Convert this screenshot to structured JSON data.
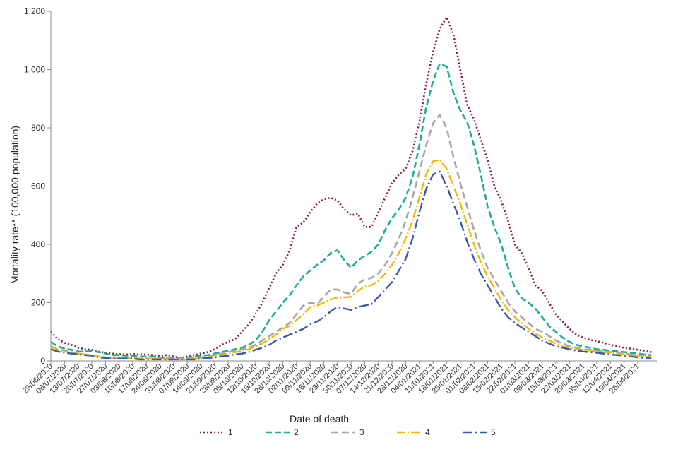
{
  "chart_data": {
    "type": "line",
    "title": "",
    "xlabel": "Date of death",
    "ylabel": "Mortality rate** (100,000 population)",
    "ylim": [
      0,
      1200
    ],
    "yticks": [
      "0",
      "200",
      "400",
      "600",
      "800",
      "1,000",
      "1,200"
    ],
    "ytick_values": [
      0,
      200,
      400,
      600,
      800,
      1000,
      1200
    ],
    "grid": false,
    "legend_position": "bottom",
    "x_tick_labels": [
      "29/06/2020",
      "06/07/2020",
      "13/07/2020",
      "20/07/2020",
      "27/07/2020",
      "03/08/2020",
      "10/08/2020",
      "17/08/2020",
      "24/08/2020",
      "31/08/2020",
      "07/09/2020",
      "14/09/2020",
      "21/09/2020",
      "28/09/2020",
      "05/10/2020",
      "12/10/2020",
      "19/10/2020",
      "26/10/2020",
      "02/11/2020",
      "09/11/2020",
      "16/11/2020",
      "23/11/2020",
      "30/11/2020",
      "07/12/2020",
      "14/12/2020",
      "21/12/2020",
      "28/12/2020",
      "04/01/2021",
      "11/01/2021",
      "18/01/2021",
      "25/01/2021",
      "01/02/2021",
      "08/02/2021",
      "15/02/2021",
      "22/02/2021",
      "01/03/2021",
      "08/03/2021",
      "15/03/2021",
      "22/03/2021",
      "29/03/2021",
      "05/04/2021",
      "12/04/2021",
      "19/04/2021",
      "26/04/2021"
    ],
    "x_week_positions": [
      0,
      1,
      2,
      3,
      4,
      5,
      6,
      7,
      8,
      9,
      10,
      11,
      12,
      13,
      14,
      15,
      16,
      17,
      18,
      19,
      20,
      21,
      22,
      23,
      24,
      25,
      26,
      27,
      28,
      29,
      30,
      31,
      32,
      33,
      34,
      35,
      36,
      37,
      38,
      39,
      40,
      41,
      42,
      43
    ],
    "x_range": [
      0,
      44.4
    ],
    "series": [
      {
        "name": "1",
        "color": "#8B1A4A",
        "dash": "2,3",
        "width": 2.6,
        "x": [
          0,
          0.5,
          1,
          1.5,
          2,
          2.5,
          3,
          3.5,
          4,
          4.5,
          5,
          5.5,
          6,
          6.5,
          7,
          7.5,
          8,
          8.5,
          9,
          9.5,
          10,
          10.5,
          11,
          11.5,
          12,
          12.5,
          13,
          13.5,
          14,
          14.5,
          15,
          15.5,
          16,
          16.5,
          17,
          17.5,
          18,
          18.5,
          19,
          19.5,
          20,
          20.5,
          21,
          21.5,
          22,
          22.5,
          23,
          23.5,
          24,
          24.5,
          25,
          25.5,
          26,
          26.5,
          27,
          27.5,
          28,
          28.5,
          29,
          29.5,
          30,
          30.5,
          31,
          31.5,
          32,
          32.5,
          33,
          33.5,
          34,
          34.5,
          35,
          35.5,
          36,
          36.5,
          37,
          37.5,
          38,
          38.5,
          39,
          39.5,
          40,
          40.5,
          41,
          41.5,
          42,
          42.5,
          43,
          43.5,
          44
        ],
        "y": [
          100,
          75,
          62,
          55,
          45,
          40,
          38,
          32,
          28,
          25,
          23,
          22,
          23,
          23,
          22,
          20,
          17,
          20,
          15,
          10,
          15,
          20,
          25,
          30,
          40,
          55,
          65,
          75,
          100,
          125,
          160,
          200,
          250,
          300,
          330,
          380,
          460,
          475,
          510,
          540,
          555,
          560,
          550,
          520,
          500,
          505,
          460,
          460,
          510,
          560,
          610,
          640,
          660,
          720,
          820,
          950,
          1060,
          1140,
          1180,
          1120,
          1000,
          880,
          830,
          760,
          690,
          600,
          550,
          480,
          400,
          370,
          320,
          260,
          240,
          200,
          160,
          135,
          110,
          90,
          80,
          72,
          68,
          62,
          55,
          50,
          45,
          42,
          38,
          35,
          30
        ]
      },
      {
        "name": "2",
        "color": "#1AAE95",
        "dash": "9,4",
        "width": 2.6,
        "x": [
          0,
          0.5,
          1,
          1.5,
          2,
          2.5,
          3,
          3.5,
          4,
          4.5,
          5,
          5.5,
          6,
          6.5,
          7,
          7.5,
          8,
          8.5,
          9,
          9.5,
          10,
          10.5,
          11,
          11.5,
          12,
          12.5,
          13,
          13.5,
          14,
          14.5,
          15,
          15.5,
          16,
          16.5,
          17,
          17.5,
          18,
          18.5,
          19,
          19.5,
          20,
          20.5,
          21,
          21.5,
          22,
          22.5,
          23,
          23.5,
          24,
          24.5,
          25,
          25.5,
          26,
          26.5,
          27,
          27.5,
          28,
          28.5,
          29,
          29.5,
          30,
          30.5,
          31,
          31.5,
          32,
          32.5,
          33,
          33.5,
          34,
          34.5,
          35,
          35.5,
          36,
          36.5,
          37,
          37.5,
          38,
          38.5,
          39,
          39.5,
          40,
          40.5,
          41,
          41.5,
          42,
          42.5,
          43,
          43.5,
          44
        ],
        "y": [
          65,
          50,
          42,
          38,
          32,
          32,
          35,
          30,
          25,
          20,
          20,
          18,
          18,
          15,
          15,
          15,
          12,
          10,
          10,
          10,
          12,
          15,
          18,
          20,
          25,
          30,
          35,
          40,
          45,
          55,
          70,
          100,
          140,
          170,
          200,
          225,
          260,
          290,
          310,
          330,
          345,
          370,
          380,
          345,
          320,
          345,
          360,
          375,
          400,
          450,
          490,
          520,
          560,
          630,
          740,
          870,
          960,
          1020,
          1010,
          920,
          860,
          820,
          740,
          640,
          530,
          460,
          400,
          320,
          250,
          215,
          200,
          180,
          150,
          120,
          100,
          80,
          65,
          55,
          50,
          45,
          40,
          38,
          35,
          33,
          30,
          28,
          25,
          22,
          20
        ]
      },
      {
        "name": "3",
        "color": "#A6A6A6",
        "dash": "10,5",
        "width": 2.6,
        "x": [
          0,
          0.5,
          1,
          1.5,
          2,
          2.5,
          3,
          3.5,
          4,
          4.5,
          5,
          5.5,
          6,
          6.5,
          7,
          7.5,
          8,
          8.5,
          9,
          9.5,
          10,
          10.5,
          11,
          11.5,
          12,
          12.5,
          13,
          13.5,
          14,
          14.5,
          15,
          15.5,
          16,
          16.5,
          17,
          17.5,
          18,
          18.5,
          19,
          19.5,
          20,
          20.5,
          21,
          21.5,
          22,
          22.5,
          23,
          23.5,
          24,
          24.5,
          25,
          25.5,
          26,
          26.5,
          27,
          27.5,
          28,
          28.5,
          29,
          29.5,
          30,
          30.5,
          31,
          31.5,
          32,
          32.5,
          33,
          33.5,
          34,
          34.5,
          35,
          35.5,
          36,
          36.5,
          37,
          37.5,
          38,
          38.5,
          39,
          39.5,
          40,
          40.5,
          41,
          41.5,
          42,
          42.5,
          43,
          43.5,
          44
        ],
        "y": [
          50,
          40,
          35,
          30,
          25,
          22,
          20,
          15,
          12,
          10,
          10,
          8,
          8,
          8,
          8,
          8,
          8,
          8,
          8,
          8,
          8,
          10,
          12,
          15,
          20,
          25,
          30,
          35,
          40,
          45,
          55,
          70,
          85,
          100,
          115,
          130,
          160,
          190,
          200,
          195,
          220,
          245,
          245,
          235,
          230,
          265,
          280,
          285,
          300,
          330,
          370,
          420,
          480,
          560,
          650,
          740,
          815,
          845,
          800,
          700,
          610,
          530,
          450,
          380,
          320,
          280,
          240,
          200,
          170,
          150,
          130,
          110,
          100,
          85,
          70,
          60,
          50,
          45,
          40,
          38,
          35,
          32,
          30,
          28,
          25,
          22,
          20,
          18,
          15
        ]
      },
      {
        "name": "4",
        "color": "#F5B800",
        "dash": "12,3,2,3",
        "width": 2.4,
        "x": [
          0,
          0.5,
          1,
          1.5,
          2,
          2.5,
          3,
          3.5,
          4,
          4.5,
          5,
          5.5,
          6,
          6.5,
          7,
          7.5,
          8,
          8.5,
          9,
          9.5,
          10,
          10.5,
          11,
          11.5,
          12,
          12.5,
          13,
          13.5,
          14,
          14.5,
          15,
          15.5,
          16,
          16.5,
          17,
          17.5,
          18,
          18.5,
          19,
          19.5,
          20,
          20.5,
          21,
          21.5,
          22,
          22.5,
          23,
          23.5,
          24,
          24.5,
          25,
          25.5,
          26,
          26.5,
          27,
          27.5,
          28,
          28.5,
          29,
          29.5,
          30,
          30.5,
          31,
          31.5,
          32,
          32.5,
          33,
          33.5,
          34,
          34.5,
          35,
          35.5,
          36,
          36.5,
          37,
          37.5,
          38,
          38.5,
          39,
          39.5,
          40,
          40.5,
          41,
          41.5,
          42,
          42.5,
          43,
          43.5,
          44
        ],
        "y": [
          48,
          38,
          32,
          28,
          25,
          22,
          20,
          15,
          12,
          10,
          10,
          10,
          10,
          8,
          8,
          8,
          8,
          5,
          5,
          5,
          5,
          8,
          10,
          12,
          15,
          20,
          25,
          30,
          35,
          40,
          50,
          60,
          75,
          90,
          110,
          120,
          140,
          160,
          185,
          190,
          200,
          210,
          218,
          218,
          220,
          240,
          255,
          260,
          275,
          300,
          330,
          370,
          420,
          480,
          560,
          640,
          685,
          690,
          660,
          600,
          540,
          470,
          400,
          340,
          290,
          250,
          210,
          175,
          150,
          130,
          110,
          95,
          80,
          70,
          60,
          50,
          45,
          40,
          38,
          35,
          32,
          30,
          28,
          25,
          22,
          20,
          18,
          15,
          12
        ]
      },
      {
        "name": "5",
        "color": "#3A5BA9",
        "dash": "14,4,2,4",
        "width": 2.4,
        "x": [
          0,
          0.5,
          1,
          1.5,
          2,
          2.5,
          3,
          3.5,
          4,
          4.5,
          5,
          5.5,
          6,
          6.5,
          7,
          7.5,
          8,
          8.5,
          9,
          9.5,
          10,
          10.5,
          11,
          11.5,
          12,
          12.5,
          13,
          13.5,
          14,
          14.5,
          15,
          15.5,
          16,
          16.5,
          17,
          17.5,
          18,
          18.5,
          19,
          19.5,
          20,
          20.5,
          21,
          21.5,
          22,
          22.5,
          23,
          23.5,
          24,
          24.5,
          25,
          25.5,
          26,
          26.5,
          27,
          27.5,
          28,
          28.5,
          29,
          29.5,
          30,
          30.5,
          31,
          31.5,
          32,
          32.5,
          33,
          33.5,
          34,
          34.5,
          35,
          35.5,
          36,
          36.5,
          37,
          37.5,
          38,
          38.5,
          39,
          39.5,
          40,
          40.5,
          41,
          41.5,
          42,
          42.5,
          43,
          43.5,
          44
        ],
        "y": [
          40,
          32,
          28,
          25,
          22,
          20,
          18,
          12,
          10,
          8,
          8,
          8,
          8,
          5,
          5,
          5,
          5,
          5,
          5,
          5,
          5,
          5,
          8,
          10,
          12,
          15,
          18,
          22,
          25,
          30,
          38,
          45,
          55,
          70,
          80,
          90,
          100,
          110,
          125,
          135,
          150,
          170,
          185,
          180,
          175,
          185,
          190,
          195,
          220,
          245,
          270,
          310,
          350,
          420,
          510,
          590,
          640,
          650,
          600,
          540,
          480,
          410,
          350,
          300,
          260,
          220,
          180,
          150,
          130,
          115,
          100,
          85,
          70,
          60,
          50,
          45,
          40,
          35,
          32,
          30,
          28,
          25,
          22,
          20,
          18,
          15,
          12,
          10,
          8
        ]
      }
    ]
  }
}
